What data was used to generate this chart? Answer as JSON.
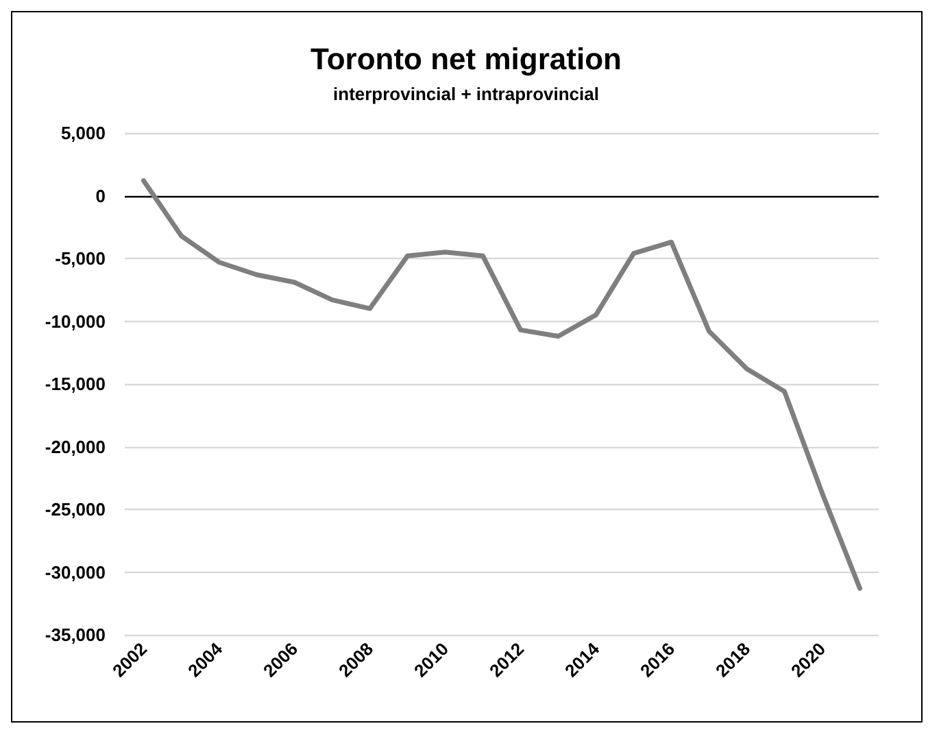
{
  "chart_data": {
    "type": "line",
    "title": "Toronto net migration",
    "subtitle": "interprovincial + intraprovincial",
    "categories": [
      "2002",
      null,
      "2004",
      null,
      "2006",
      null,
      "2008",
      null,
      "2010",
      null,
      "2012",
      null,
      "2014",
      null,
      "2016",
      null,
      "2018",
      null,
      "2020",
      null
    ],
    "series": [
      {
        "color": "#7f7f7f",
        "values": [
          1200,
          -3200,
          -5300,
          -6300,
          -6900,
          -8300,
          -9000,
          -4800,
          -4500,
          -4800,
          -10700,
          -11200,
          -9500,
          -4600,
          -3700,
          -10800,
          -13800,
          -15600,
          -23700,
          -31300
        ]
      }
    ],
    "ylim": [
      -35000,
      5000
    ],
    "yticks": [
      {
        "value": -35000,
        "label": "-35,000"
      },
      {
        "value": -30000,
        "label": "-30,000"
      },
      {
        "value": -25000,
        "label": "-25,000"
      },
      {
        "value": -20000,
        "label": "-20,000"
      },
      {
        "value": -15000,
        "label": "-15,000"
      },
      {
        "value": -10000,
        "label": "-10,000"
      },
      {
        "value": -5000,
        "label": "-5,000"
      },
      {
        "value": 0,
        "label": "0"
      },
      {
        "value": 5000,
        "label": "5,000"
      }
    ],
    "grid": "y",
    "marker": "none",
    "line_style": "solid"
  }
}
